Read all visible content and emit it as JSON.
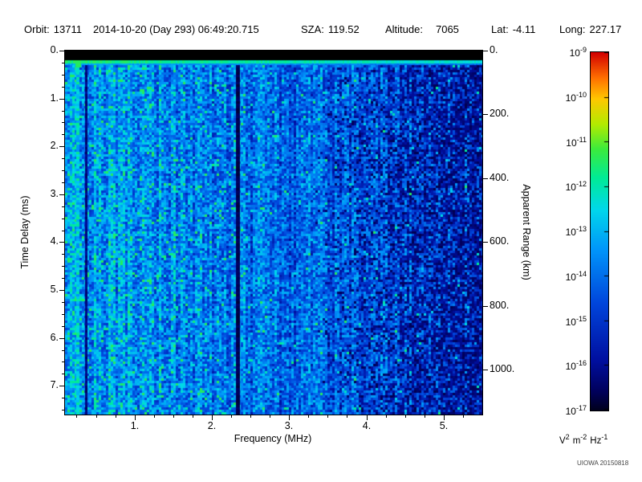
{
  "header": {
    "fields": [
      {
        "label": "Orbit:",
        "value": "13711"
      },
      {
        "label": "",
        "value": "2014-10-20 (Day 293) 06:49:20.715"
      },
      {
        "label": "SZA:",
        "value": "119.52"
      },
      {
        "label": "Altitude:",
        "value": "7065"
      },
      {
        "label": "Lat:",
        "value": "-4.11"
      },
      {
        "label": "Long:",
        "value": "227.17"
      }
    ]
  },
  "axes": {
    "x": {
      "label": "Frequency (MHz)",
      "tick_values": [
        1,
        2,
        3,
        4,
        5
      ],
      "tick_labels": [
        "1.",
        "2.",
        "3.",
        "4.",
        "5."
      ]
    },
    "y_left": {
      "label": "Time Delay (ms)",
      "tick_values": [
        0,
        1,
        2,
        3,
        4,
        5,
        6,
        7
      ],
      "tick_labels": [
        "0.",
        "1.",
        "2.",
        "3.",
        "4.",
        "5.",
        "6.",
        "7."
      ]
    },
    "y_right": {
      "label": "Apparent Range (km)",
      "tick_values": [
        0,
        200,
        400,
        600,
        800,
        1000
      ],
      "tick_labels": [
        "0.",
        "200.",
        "400.",
        "600.",
        "800.",
        "1000."
      ]
    }
  },
  "colorbar": {
    "exponents": [
      "-9",
      "-10",
      "-11",
      "-12",
      "-13",
      "-14",
      "-15",
      "-16",
      "-17"
    ],
    "unit_parts": [
      {
        "base": "V",
        "exp": "2"
      },
      {
        "base": "m",
        "exp": "-2"
      },
      {
        "base": "Hz",
        "exp": "-1"
      }
    ]
  },
  "watermark": "UIOWA 20150818",
  "chart_data": {
    "type": "heatmap",
    "title": "Orbit: 13711  2014-10-20 (Day 293) 06:49:20.715  SZA: 119.52  Altitude: 7065  Lat: -4.11  Long: 227.17",
    "xlabel": "Frequency (MHz)",
    "x_range": [
      0.1,
      5.5
    ],
    "x_ticks": [
      1,
      2,
      3,
      4,
      5
    ],
    "ylabel": "Time Delay (ms)",
    "y_range": [
      0,
      7.6
    ],
    "y_ticks": [
      0,
      1,
      2,
      3,
      4,
      5,
      6,
      7
    ],
    "y2label": "Apparent Range (km)",
    "y2_ticks": [
      0,
      200,
      400,
      600,
      800,
      1000
    ],
    "range_km_per_ms": 150,
    "colorbar": {
      "scale": "log10",
      "unit": "V^2 m^-2 Hz^-1",
      "tick_exponents": [
        -9,
        -10,
        -11,
        -12,
        -13,
        -14,
        -15,
        -16,
        -17
      ],
      "orientation": "vertical",
      "top_color": "red",
      "bottom_color": "dark blue"
    },
    "colormap_stops": [
      [
        0.0,
        0,
        0,
        30
      ],
      [
        0.05,
        0,
        0,
        90
      ],
      [
        0.14,
        0,
        15,
        160
      ],
      [
        0.3,
        0,
        70,
        220
      ],
      [
        0.45,
        0,
        150,
        250
      ],
      [
        0.56,
        0,
        215,
        235
      ],
      [
        0.65,
        0,
        235,
        150
      ],
      [
        0.73,
        60,
        235,
        60
      ],
      [
        0.8,
        180,
        235,
        0
      ],
      [
        0.87,
        255,
        200,
        0
      ],
      [
        0.93,
        255,
        110,
        0
      ],
      [
        1.0,
        210,
        0,
        0
      ]
    ],
    "features": {
      "top_black_band_ms": [
        0,
        0.2
      ],
      "surface_echo_line_ms": 0.28,
      "bright_column_mhz": 0.27,
      "dark_column_mhz": 0.36,
      "interference_gap_mhz": 2.33,
      "noise_fade_start_mhz": 3.3,
      "description": "Diffuse blue noise field, brighter with cyan speckles below 2.3 MHz, fading to black speckle above ~4 MHz; solid black band at top (0-0.2 ms); bright green horizontal echo line near 0.28 ms spanning all frequencies; bright cyan vertical column near 0.27 MHz; narrow dark column near 0.36 MHz; black vertical gap at 2.33 MHz"
    }
  }
}
